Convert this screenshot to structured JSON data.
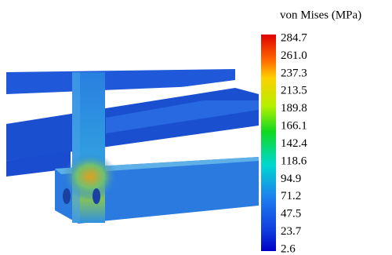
{
  "legend": {
    "title": "von Mises (MPa)",
    "ticks": [
      "284.7",
      "261.0",
      "237.3",
      "213.5",
      "189.8",
      "166.1",
      "142.4",
      "118.6",
      "94.9",
      "71.2",
      "47.5",
      "23.7",
      "2.6"
    ]
  }
}
